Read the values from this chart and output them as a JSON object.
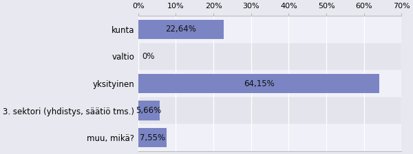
{
  "categories": [
    "kunta",
    "valtio",
    "yksityinen",
    "3. sektori (yhdistys, säätiö tms.)",
    "muu, mikä?"
  ],
  "values": [
    22.64,
    0,
    64.15,
    5.66,
    7.55
  ],
  "labels": [
    "22,64%",
    "0%",
    "64,15%",
    "5,66%",
    "7,55%"
  ],
  "bar_color": "#7b85c4",
  "background_color": "#e8e8f0",
  "row_colors": [
    "#f0f0f8",
    "#e4e4ec",
    "#f0f0f8",
    "#e4e4ec",
    "#f0f0f8"
  ],
  "plot_bg": "#e8e8f0",
  "xlim": [
    0,
    70
  ],
  "xticks": [
    0,
    10,
    20,
    30,
    40,
    50,
    60,
    70
  ],
  "xtick_labels": [
    "0%",
    "10%",
    "20%",
    "30%",
    "40%",
    "50%",
    "60%",
    "70%"
  ],
  "bar_height": 0.72,
  "label_fontsize": 8.5,
  "tick_fontsize": 8,
  "text_color": "#111111",
  "grid_color": "#ffffff",
  "spine_color": "#bbbbbb"
}
